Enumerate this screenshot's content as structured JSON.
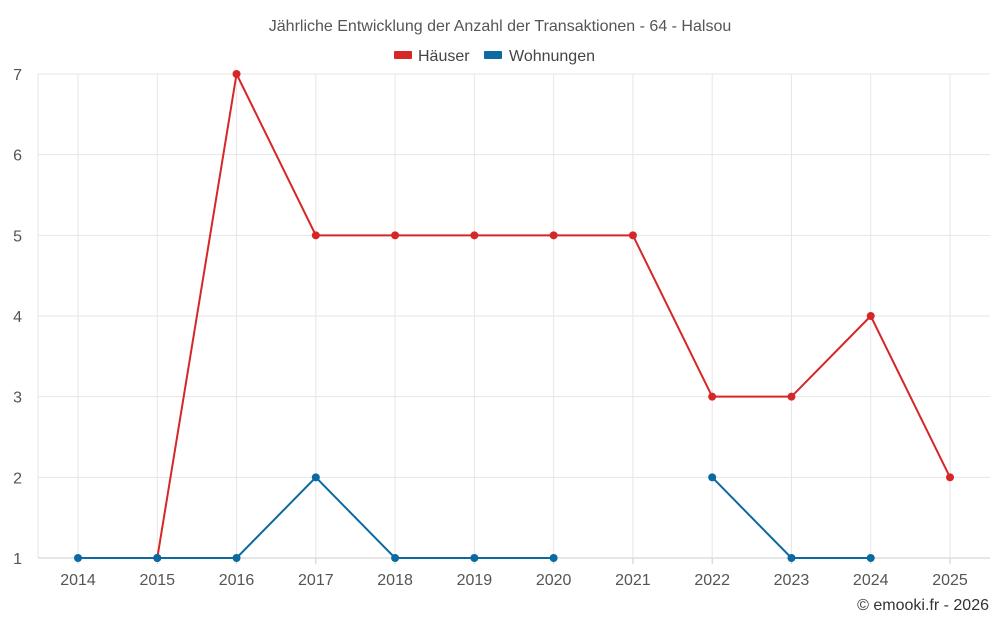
{
  "chart_data": {
    "type": "line",
    "title": "Jährliche Entwicklung der Anzahl der Transaktionen - 64 - Halsou",
    "x": [
      "2014",
      "2015",
      "2016",
      "2017",
      "2018",
      "2019",
      "2020",
      "2021",
      "2022",
      "2023",
      "2024",
      "2025"
    ],
    "y_ticks": [
      "1",
      "2",
      "3",
      "4",
      "5",
      "6",
      "7"
    ],
    "ylim": [
      1,
      7
    ],
    "grid": true,
    "legend_position": "top-center",
    "series": [
      {
        "name": "Häuser",
        "color": "#d62728",
        "values": [
          null,
          1,
          7,
          5,
          5,
          5,
          5,
          5,
          3,
          3,
          4,
          2
        ]
      },
      {
        "name": "Wohnungen",
        "color": "#0b6aa2",
        "values": [
          1,
          1,
          1,
          2,
          1,
          1,
          1,
          null,
          2,
          1,
          1,
          null
        ]
      }
    ]
  },
  "credit": "© emooki.fr - 2026"
}
